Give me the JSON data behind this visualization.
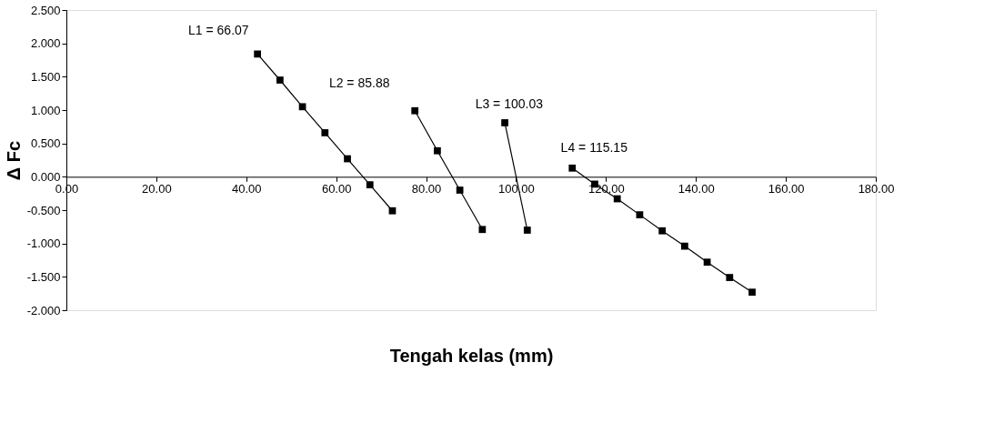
{
  "chart_data": {
    "type": "line",
    "xlabel": "Tengah kelas (mm)",
    "ylabel": "Δ Fc",
    "xlim": [
      0,
      180
    ],
    "ylim": [
      -2,
      2.5
    ],
    "xticks": [
      {
        "value": 0,
        "label": "0.00"
      },
      {
        "value": 20,
        "label": "20.00"
      },
      {
        "value": 40,
        "label": "40.00"
      },
      {
        "value": 60,
        "label": "60.00"
      },
      {
        "value": 80,
        "label": "80.00"
      },
      {
        "value": 100,
        "label": "100.00"
      },
      {
        "value": 120,
        "label": "120.00"
      },
      {
        "value": 140,
        "label": "140.00"
      },
      {
        "value": 160,
        "label": "160.00"
      },
      {
        "value": 180,
        "label": "180.00"
      }
    ],
    "yticks": [
      {
        "value": -2,
        "label": "-2.000"
      },
      {
        "value": -1.5,
        "label": "-1.500"
      },
      {
        "value": -1,
        "label": "-1.000"
      },
      {
        "value": -0.5,
        "label": "-0.500"
      },
      {
        "value": 0,
        "label": "0.000"
      },
      {
        "value": 0.5,
        "label": "0.500"
      },
      {
        "value": 1,
        "label": "1.000"
      },
      {
        "value": 1.5,
        "label": "1.500"
      },
      {
        "value": 2,
        "label": "2.000"
      },
      {
        "value": 2.5,
        "label": "2.500"
      }
    ],
    "grid": false,
    "legend": false,
    "marker": "square",
    "line_style": "solid",
    "series": [
      {
        "color": "#000000",
        "x": [
          42.5,
          47.5,
          52.5,
          57.5,
          62.5,
          67.5,
          72.5
        ],
        "values": [
          1.84,
          1.45,
          1.05,
          0.66,
          0.27,
          -0.12,
          -0.51
        ]
      },
      {
        "color": "#000000",
        "x": [
          77.5,
          82.5,
          87.5,
          92.5
        ],
        "values": [
          0.99,
          0.39,
          -0.2,
          -0.79
        ]
      },
      {
        "color": "#000000",
        "x": [
          97.5,
          102.5
        ],
        "values": [
          0.81,
          -0.8
        ]
      },
      {
        "color": "#000000",
        "x": [
          112.5,
          117.5,
          122.5,
          127.5,
          132.5,
          137.5,
          142.5,
          147.5,
          152.5
        ],
        "values": [
          0.13,
          -0.11,
          -0.33,
          -0.57,
          -0.81,
          -1.04,
          -1.28,
          -1.51,
          -1.73
        ]
      }
    ],
    "annotations": [
      "L1 = 66.07",
      "L2 = 85.88",
      "L3 = 100.03",
      "L4 = 115.15"
    ]
  }
}
